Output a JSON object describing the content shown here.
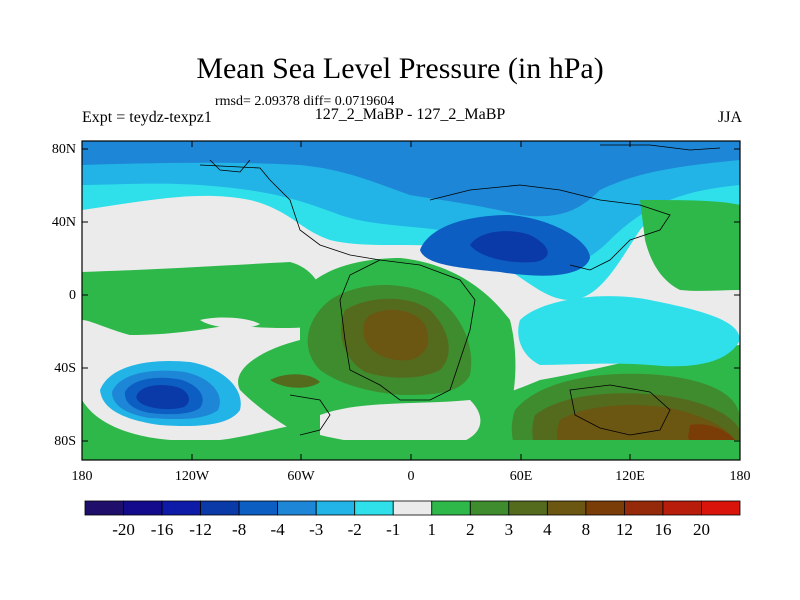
{
  "header": {
    "title": "Mean Sea Level Pressure (in hPa)",
    "stats": "rmsd= 2.09378 diff= 0.0719604",
    "left_label": "Expt = teydz-texpz1",
    "center_label": "127_2_MaBP - 127_2_MaBP",
    "right_label": "JJA"
  },
  "map": {
    "lat_ticks": [
      "80N",
      "40N",
      "0",
      "40S",
      "80S"
    ],
    "lon_ticks": [
      "180",
      "120W",
      "60W",
      "0",
      "60E",
      "120E",
      "180"
    ]
  },
  "colorbar": {
    "colors": [
      "#1f0f6b",
      "#140a8c",
      "#0e1aa8",
      "#0a3aa8",
      "#0d5ec2",
      "#1e86d6",
      "#22b4e6",
      "#2fe0ea",
      "#ebebeb",
      "#2eb84a",
      "#3f8c2e",
      "#546b1e",
      "#6b5612",
      "#7a3d08",
      "#942a0a",
      "#b81c0a",
      "#d9140a"
    ],
    "labels": [
      "-20",
      "-16",
      "-12",
      "-8",
      "-4",
      "-3",
      "-2",
      "-1",
      "1",
      "2",
      "3",
      "4",
      "8",
      "12",
      "16",
      "20"
    ]
  }
}
